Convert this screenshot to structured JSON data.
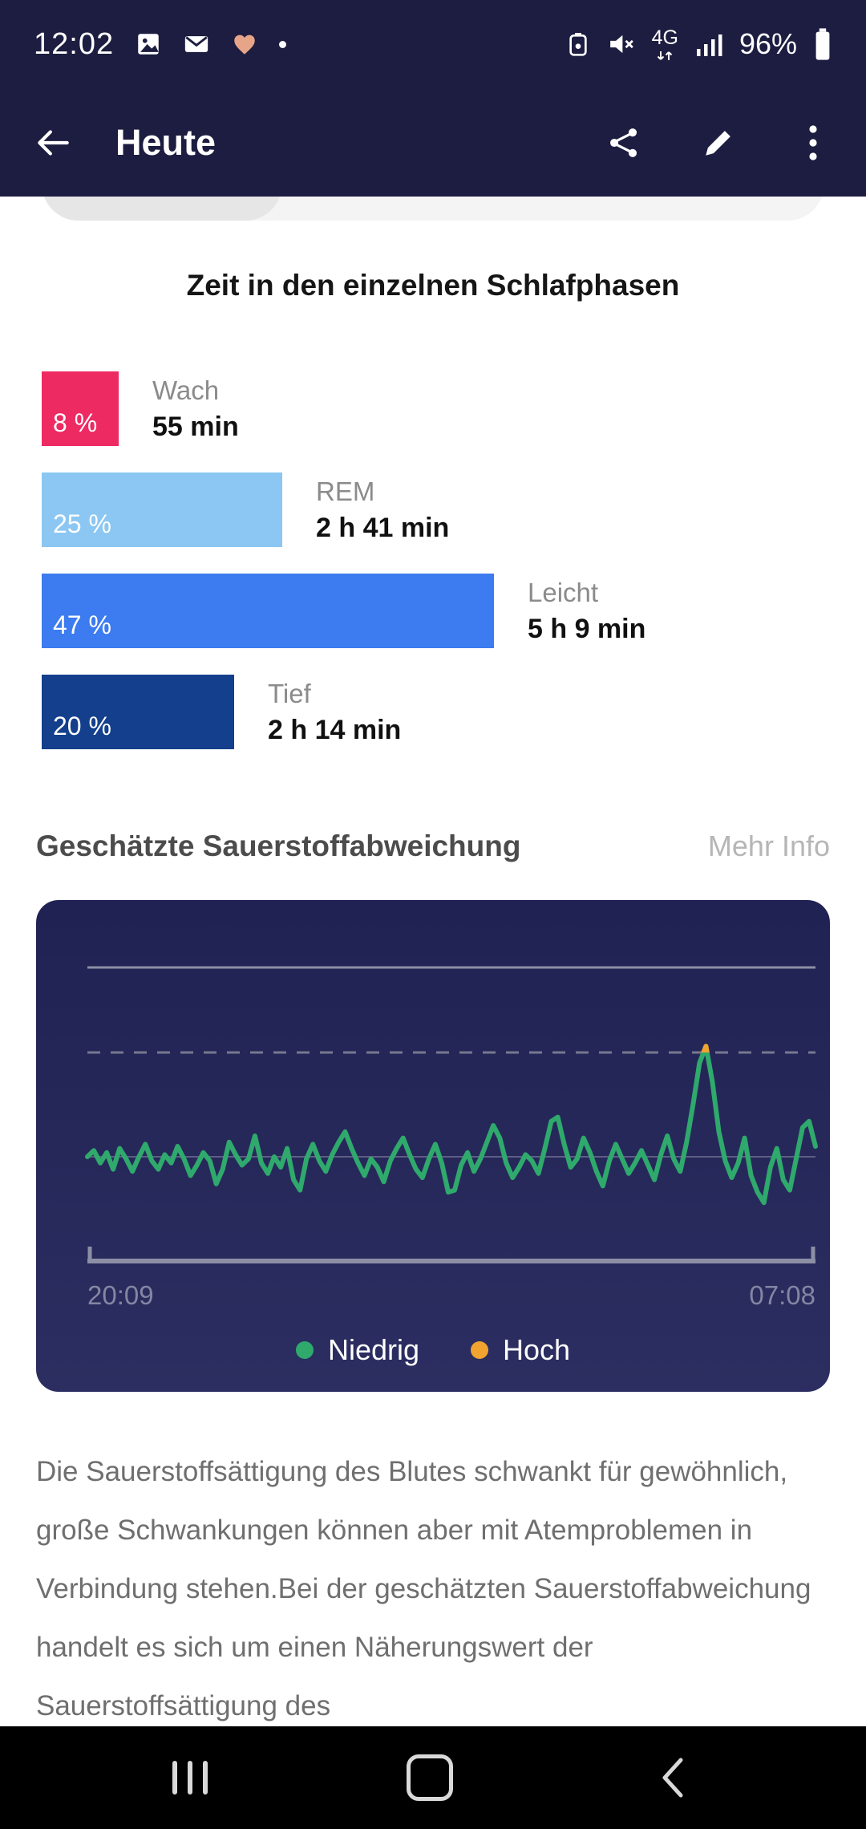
{
  "status_bar": {
    "time": "12:02",
    "network": "4G",
    "battery": "96%",
    "icons": [
      "image-icon",
      "mail-icon",
      "heart-icon",
      "notification-dot-icon",
      "portable-battery-icon",
      "mute-icon",
      "data-arrows-icon",
      "signal-icon",
      "battery-icon"
    ]
  },
  "app_bar": {
    "title": "Heute",
    "icons": [
      "back-arrow-icon",
      "share-icon",
      "edit-icon",
      "overflow-menu-icon"
    ]
  },
  "oxygen_section": {
    "title": "Geschätzte Sauerstoffabweichung",
    "more_info": "Mehr Info",
    "description": "Die Sauerstoffsättigung des Blutes schwankt für gewöhnlich, große Schwankungen können aber mit Atemproblemen in Verbindung stehen.Bei der geschätzten Sauerstoffabweichung handelt es sich um einen Näherungswert der Sauerstoffsättigung des"
  },
  "chart_data": [
    {
      "type": "bar",
      "orientation": "horizontal",
      "title": "Zeit in den einzelnen Schlafphasen",
      "categories": [
        "Wach",
        "REM",
        "Leicht",
        "Tief"
      ],
      "values": [
        8,
        25,
        47,
        20
      ],
      "value_unit": "percent",
      "value_labels": [
        "8 %",
        "25 %",
        "47 %",
        "20 %"
      ],
      "durations": [
        "55 min",
        "2 h 41 min",
        "5 h 9 min",
        "2 h 14 min"
      ],
      "colors": [
        "#ee2a62",
        "#8bc7f2",
        "#3c7bf0",
        "#133f8c"
      ]
    },
    {
      "type": "line",
      "title": "Geschätzte Sauerstoffabweichung",
      "x_axis": {
        "start": "20:09",
        "end": "07:08"
      },
      "legend": [
        {
          "label": "Niedrig",
          "color": "#2fa96c"
        },
        {
          "label": "Hoch",
          "color": "#f0a32f"
        }
      ],
      "baseline": 50,
      "high_threshold": 100,
      "values": [
        50,
        53,
        47,
        52,
        44,
        54,
        49,
        43,
        50,
        56,
        48,
        44,
        51,
        47,
        55,
        49,
        41,
        46,
        52,
        48,
        37,
        44,
        57,
        51,
        46,
        49,
        60,
        47,
        42,
        50,
        45,
        54,
        39,
        34,
        49,
        56,
        48,
        43,
        51,
        57,
        62,
        54,
        47,
        41,
        49,
        45,
        38,
        48,
        54,
        59,
        51,
        44,
        40,
        49,
        56,
        47,
        33,
        34,
        46,
        52,
        43,
        49,
        57,
        65,
        59,
        47,
        40,
        45,
        51,
        48,
        42,
        54,
        67,
        69,
        56,
        45,
        49,
        59,
        52,
        43,
        36,
        48,
        56,
        49,
        42,
        47,
        53,
        46,
        39,
        51,
        60,
        49,
        43,
        57,
        75,
        95,
        103,
        86,
        62,
        48,
        40,
        47,
        59,
        41,
        33,
        28,
        45,
        54,
        39,
        34,
        49,
        64,
        67,
        55
      ]
    }
  ],
  "nav_bar": {
    "icons": [
      "recents-icon",
      "home-icon",
      "back-icon"
    ]
  }
}
